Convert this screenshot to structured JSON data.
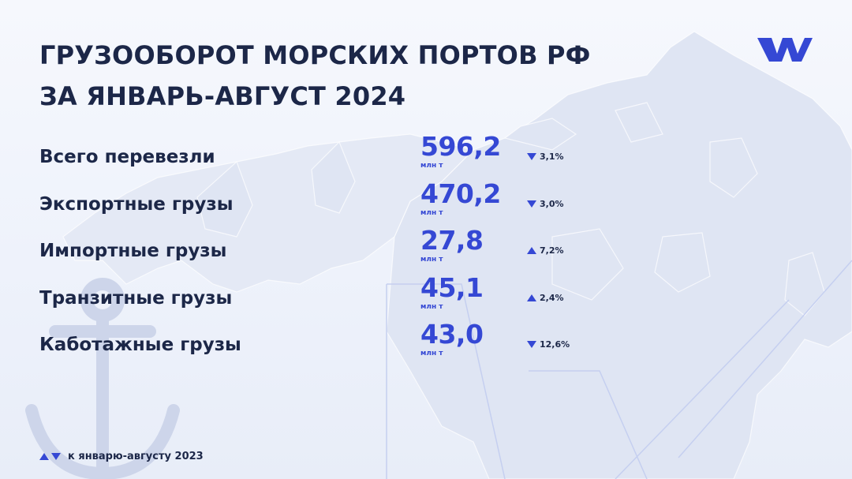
{
  "title": {
    "line1": "ГРУЗООБОРОТ МОРСКИХ ПОРТОВ РФ",
    "line2": "ЗА ЯНВАРЬ-АВГУСТ 2024"
  },
  "colors": {
    "accent": "#3548d4",
    "text": "#1c2748",
    "background": "#eef2fb",
    "map": "#dfe5f3"
  },
  "icons": {
    "logo": "brand-logo-icon",
    "map": "russia-map-icon",
    "anchor": "anchor-icon",
    "up": "triangle-up-icon",
    "down": "triangle-down-icon"
  },
  "rows": [
    {
      "label": "Всего перевезли",
      "value": "596,2",
      "unit": "млн т",
      "direction": "down",
      "change": "3,1%"
    },
    {
      "label": "Экспортные грузы",
      "value": "470,2",
      "unit": "млн т",
      "direction": "down",
      "change": "3,0%"
    },
    {
      "label": "Импортные грузы",
      "value": "27,8",
      "unit": "млн т",
      "direction": "up",
      "change": "7,2%"
    },
    {
      "label": "Транзитные грузы",
      "value": "45,1",
      "unit": "млн т",
      "direction": "up",
      "change": "2,4%"
    },
    {
      "label": "Каботажные грузы",
      "value": "43,0",
      "unit": "млн т",
      "direction": "down",
      "change": "12,6%"
    }
  ],
  "footnote": "к январю-августу 2023"
}
